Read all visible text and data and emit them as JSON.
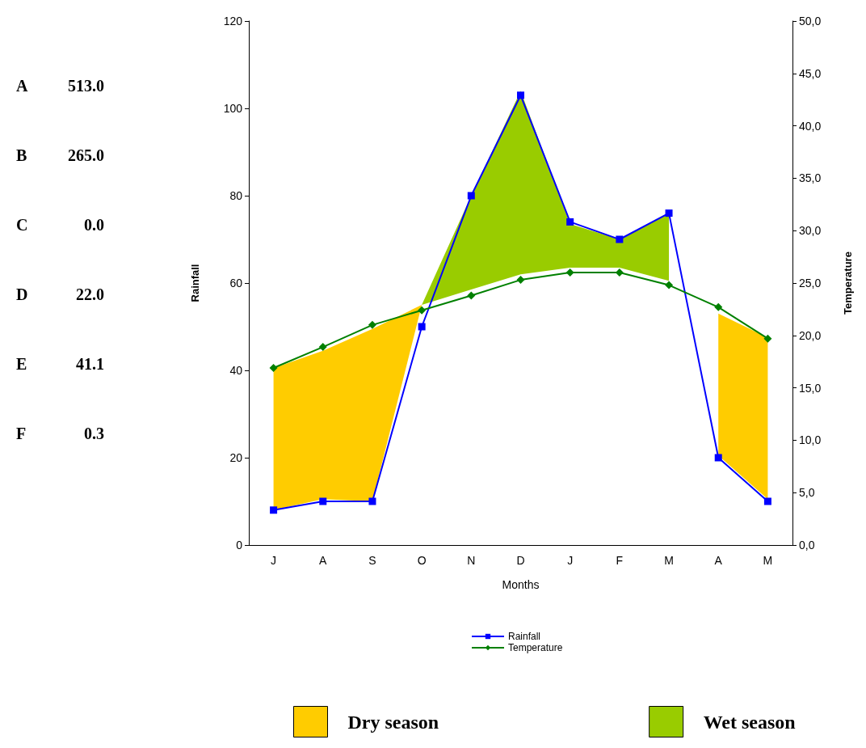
{
  "chart_data": {
    "type": "line",
    "xlabel": "Months",
    "ylabel": "Rainfall",
    "y2label": "Temperature",
    "categories": [
      "J",
      "A",
      "S",
      "O",
      "N",
      "D",
      "J",
      "F",
      "M",
      "A",
      "M"
    ],
    "series": [
      {
        "name": "Rainfall",
        "color": "#0000ff",
        "marker": "square",
        "values": [
          8,
          10,
          10,
          50,
          80,
          103,
          74,
          70,
          76,
          20,
          10
        ]
      },
      {
        "name": "Temperature",
        "color": "#008000",
        "marker": "diamond",
        "axis": "y2",
        "values": [
          16.9,
          18.9,
          21.0,
          22.4,
          23.8,
          25.3,
          26.0,
          26.0,
          24.8,
          22.7,
          19.7
        ]
      },
      {
        "name": "Dry season",
        "type": "line",
        "color": "#ffcc00",
        "values": [
          null,
          null,
          null,
          null,
          null,
          null,
          null,
          null,
          null,
          null,
          null
        ],
        "lower": [
          8,
          10.5,
          10,
          55,
          null,
          null,
          null,
          null,
          null,
          20.5,
          10.5
        ],
        "upper": [
          40.5,
          44.5,
          49.5,
          55,
          null,
          null,
          null,
          null,
          null,
          53,
          47.5
        ]
      },
      {
        "name": "Wet season",
        "type": "line",
        "color": "#99cc00",
        "values": [
          null,
          null,
          null,
          null,
          null,
          null,
          null,
          null,
          null,
          null,
          null
        ],
        "lower": [
          null,
          null,
          null,
          55,
          58.5,
          62,
          63.5,
          63.5,
          60.5,
          null,
          null
        ],
        "upper": [
          null,
          null,
          null,
          55,
          80,
          104,
          73.5,
          70,
          76,
          null,
          null
        ]
      }
    ],
    "ylim": [
      0,
      120
    ],
    "yticks": [
      0,
      20,
      40,
      60,
      80,
      100,
      120
    ],
    "y2lim": [
      0,
      50
    ],
    "y2ticks": [
      {
        "value": 0,
        "label": "0,0"
      },
      {
        "value": 5,
        "label": "5,0"
      },
      {
        "value": 10,
        "label": "10,0"
      },
      {
        "value": 15,
        "label": "15,0"
      },
      {
        "value": 20,
        "label": "20,0"
      },
      {
        "value": 25,
        "label": "25,0"
      },
      {
        "value": 30,
        "label": "30,0"
      },
      {
        "value": 35,
        "label": "35,0"
      },
      {
        "value": 40,
        "label": "40,0"
      },
      {
        "value": 45,
        "label": "45,0"
      },
      {
        "value": 50,
        "label": "50,0"
      }
    ],
    "grid": false,
    "legend": "bottom",
    "line_style": "solid",
    "annotations": [
      "A 513.0",
      "B 265.0",
      "C 0.0",
      "D 22.0",
      "E 41.1",
      "F 0.3"
    ]
  }
}
